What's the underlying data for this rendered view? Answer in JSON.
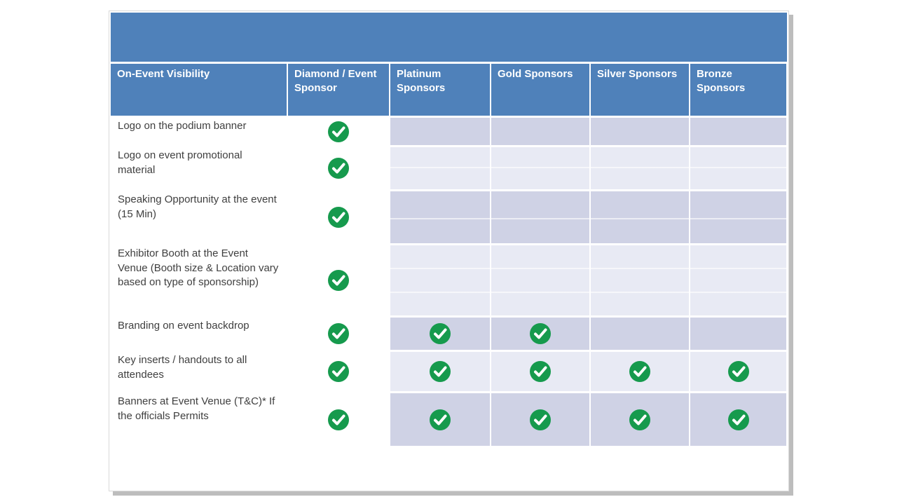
{
  "colors": {
    "header_blue": "#4f81ba",
    "band_dark": "#cfd2e5",
    "band_light": "#e8eaf4",
    "check_green": "#169a4d",
    "label_text": "#3f3f3f",
    "header_text": "#ffffff",
    "slide_shadow": "#bdbdbd"
  },
  "table": {
    "header": [
      "On-Event Visibility",
      "Diamond / Event Sponsor",
      "Platinum Sponsors",
      "Gold Sponsors",
      "Silver Sponsors",
      "Bronze Sponsors"
    ],
    "rows": [
      {
        "feature": "Logo on the podium banner",
        "checks": [
          true,
          false,
          false,
          false,
          false
        ]
      },
      {
        "feature": "Logo on event promotional material",
        "checks": [
          true,
          false,
          false,
          false,
          false
        ]
      },
      {
        "feature": "Speaking Opportunity at the event (15 Min)",
        "checks": [
          true,
          false,
          false,
          false,
          false
        ]
      },
      {
        "feature": "Exhibitor Booth at the Event Venue (Booth size & Location vary based on type of sponsorship)",
        "checks": [
          true,
          false,
          false,
          false,
          false
        ]
      },
      {
        "feature": "Branding on event backdrop",
        "checks": [
          true,
          true,
          true,
          false,
          false
        ]
      },
      {
        "feature": "Key inserts / handouts to all attendees",
        "checks": [
          true,
          true,
          true,
          true,
          true
        ]
      },
      {
        "feature": "Banners at Event Venue (T&C)* If the officials Permits",
        "checks": [
          true,
          true,
          true,
          true,
          true
        ]
      }
    ],
    "check_icon": {
      "name": "check-circle-icon",
      "glyph": "✔",
      "color": "#169a4d"
    }
  }
}
